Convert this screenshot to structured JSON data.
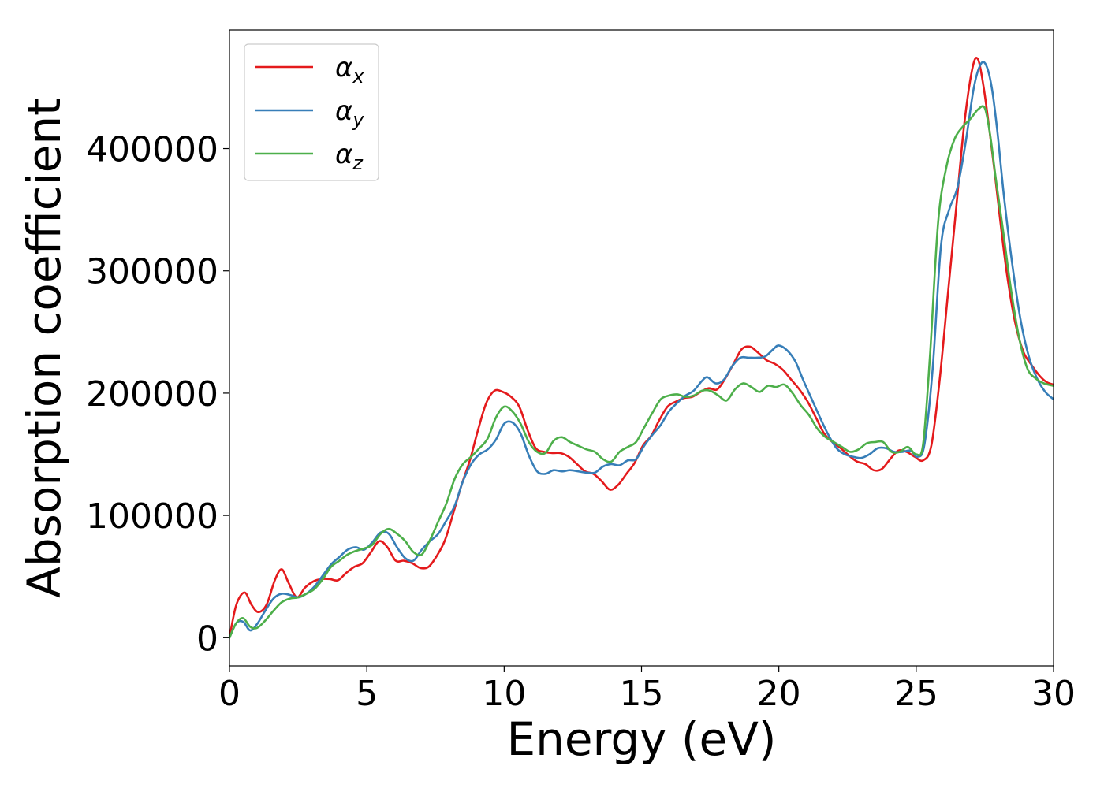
{
  "chart_data": {
    "type": "line",
    "title": "",
    "xlabel": "Energy (eV)",
    "ylabel": "Absorption coefficient",
    "xlim": [
      0,
      30
    ],
    "ylim": [
      -23000,
      497000
    ],
    "xticks": [
      0,
      5,
      10,
      15,
      20,
      25,
      30
    ],
    "yticks": [
      0,
      100000,
      200000,
      300000,
      400000
    ],
    "grid": false,
    "legend_position": "top-left",
    "series": [
      {
        "name": "x",
        "legend_symbol": "α",
        "color": "#e41a1c",
        "x": [
          0,
          0.25,
          0.55,
          0.8,
          1.05,
          1.35,
          1.65,
          1.9,
          2.15,
          2.45,
          2.75,
          3.05,
          3.35,
          3.65,
          3.95,
          4.25,
          4.55,
          4.85,
          5.15,
          5.45,
          5.75,
          6.05,
          6.35,
          6.65,
          6.95,
          7.25,
          7.55,
          7.85,
          8.15,
          8.45,
          8.75,
          9.05,
          9.35,
          9.65,
          9.95,
          10.25,
          10.55,
          10.85,
          11.15,
          11.45,
          11.75,
          12.05,
          12.35,
          12.65,
          12.95,
          13.25,
          13.55,
          13.85,
          14.15,
          14.45,
          14.75,
          15.05,
          15.35,
          15.65,
          15.95,
          16.25,
          16.55,
          16.85,
          17.15,
          17.45,
          17.75,
          18.05,
          18.35,
          18.65,
          18.95,
          19.25,
          19.55,
          19.85,
          20.15,
          20.45,
          20.75,
          21.05,
          21.35,
          21.65,
          21.95,
          22.25,
          22.55,
          22.85,
          23.15,
          23.45,
          23.75,
          24.05,
          24.35,
          24.65,
          24.95,
          25.25,
          25.55,
          25.85,
          26.15,
          26.45,
          26.75,
          27.05,
          27.25,
          27.45,
          27.65,
          27.85,
          28.05,
          28.3,
          28.6,
          28.9,
          29.2,
          29.5,
          29.75,
          30
        ],
        "values": [
          0,
          27000,
          37000,
          27000,
          21000,
          27000,
          47000,
          56000,
          45000,
          33000,
          41000,
          46000,
          48000,
          48000,
          47000,
          53000,
          58000,
          61000,
          70000,
          79000,
          74000,
          63000,
          63000,
          61000,
          57000,
          58000,
          67000,
          80000,
          102000,
          125000,
          145000,
          170000,
          192000,
          202000,
          201000,
          197000,
          189000,
          170000,
          155000,
          152000,
          151000,
          151000,
          148000,
          142000,
          136000,
          134000,
          128000,
          121000,
          125000,
          134000,
          143000,
          157000,
          165000,
          178000,
          189000,
          193000,
          196000,
          197000,
          201000,
          204000,
          203000,
          212000,
          224000,
          236000,
          238000,
          233000,
          227000,
          224000,
          219000,
          211000,
          203000,
          193000,
          180000,
          167000,
          160000,
          155000,
          149000,
          144000,
          142000,
          137000,
          138000,
          146000,
          153000,
          152000,
          148000,
          145000,
          157000,
          210000,
          280000,
          350000,
          420000,
          466000,
          473000,
          451000,
          418000,
          382000,
          343000,
          298000,
          258000,
          234000,
          223000,
          214000,
          209000,
          207000
        ]
      },
      {
        "name": "y",
        "legend_symbol": "α",
        "color": "#377eb8",
        "x": [
          0,
          0.25,
          0.5,
          0.75,
          1.0,
          1.3,
          1.6,
          1.9,
          2.2,
          2.5,
          2.8,
          3.1,
          3.4,
          3.7,
          4.0,
          4.3,
          4.6,
          4.9,
          5.2,
          5.5,
          5.8,
          6.1,
          6.4,
          6.7,
          7.0,
          7.3,
          7.6,
          7.9,
          8.2,
          8.5,
          8.8,
          9.1,
          9.4,
          9.7,
          10.0,
          10.3,
          10.6,
          10.9,
          11.2,
          11.5,
          11.8,
          12.1,
          12.4,
          12.7,
          13.0,
          13.3,
          13.6,
          13.9,
          14.2,
          14.5,
          14.8,
          15.1,
          15.4,
          15.7,
          16.0,
          16.3,
          16.6,
          16.9,
          17.2,
          17.4,
          17.7,
          18.0,
          18.3,
          18.6,
          18.9,
          19.2,
          19.5,
          19.8,
          20.0,
          20.3,
          20.6,
          20.9,
          21.2,
          21.5,
          21.8,
          22.1,
          22.4,
          22.7,
          23.0,
          23.3,
          23.6,
          23.9,
          24.2,
          24.5,
          24.8,
          25.05,
          25.3,
          25.6,
          25.9,
          26.2,
          26.5,
          26.8,
          27.1,
          27.35,
          27.55,
          27.75,
          27.95,
          28.2,
          28.5,
          28.8,
          29.1,
          29.4,
          29.7,
          30
        ],
        "values": [
          0,
          12000,
          13000,
          6000,
          11000,
          22000,
          32000,
          36000,
          35000,
          33000,
          36000,
          42000,
          51000,
          60000,
          66000,
          72000,
          74000,
          72000,
          78000,
          86000,
          85000,
          74000,
          65000,
          63000,
          72000,
          79000,
          85000,
          96000,
          108000,
          128000,
          142000,
          150000,
          154000,
          162000,
          175000,
          176000,
          167000,
          149000,
          136000,
          134000,
          137000,
          136000,
          137000,
          136000,
          135000,
          135000,
          140000,
          142000,
          141000,
          145000,
          146000,
          157000,
          166000,
          174000,
          185000,
          192000,
          198000,
          202000,
          210000,
          213000,
          208000,
          211000,
          222000,
          229000,
          229000,
          229000,
          230000,
          236000,
          239000,
          235000,
          226000,
          210000,
          195000,
          180000,
          166000,
          155000,
          150000,
          148000,
          147000,
          150000,
          155000,
          155000,
          152000,
          152000,
          153000,
          148000,
          158000,
          220000,
          320000,
          350000,
          368000,
          405000,
          450000,
          469000,
          468000,
          450000,
          415000,
          360000,
          305000,
          260000,
          230000,
          212000,
          201000,
          195000
        ]
      },
      {
        "name": "z",
        "legend_symbol": "α",
        "color": "#4daf4a",
        "x": [
          0,
          0.25,
          0.5,
          0.75,
          1.0,
          1.3,
          1.6,
          1.9,
          2.2,
          2.5,
          2.8,
          3.1,
          3.4,
          3.7,
          4.0,
          4.3,
          4.6,
          4.9,
          5.2,
          5.5,
          5.8,
          6.1,
          6.4,
          6.7,
          7.0,
          7.3,
          7.6,
          7.9,
          8.2,
          8.5,
          8.8,
          9.1,
          9.4,
          9.7,
          10.0,
          10.3,
          10.6,
          10.9,
          11.2,
          11.5,
          11.8,
          12.1,
          12.4,
          12.7,
          13.0,
          13.3,
          13.6,
          13.9,
          14.2,
          14.5,
          14.8,
          15.1,
          15.4,
          15.7,
          16.0,
          16.3,
          16.6,
          16.9,
          17.2,
          17.5,
          17.8,
          18.1,
          18.4,
          18.7,
          19.0,
          19.3,
          19.6,
          19.9,
          20.2,
          20.5,
          20.8,
          21.1,
          21.4,
          21.7,
          22.0,
          22.3,
          22.6,
          22.9,
          23.2,
          23.5,
          23.8,
          24.1,
          24.4,
          24.7,
          25.0,
          25.25,
          25.5,
          25.8,
          26.1,
          26.4,
          26.7,
          27.0,
          27.25,
          27.5,
          27.7,
          27.9,
          28.15,
          28.45,
          28.75,
          29.05,
          29.35,
          29.65,
          30
        ],
        "values": [
          0,
          12000,
          16000,
          9000,
          8000,
          14000,
          22000,
          29000,
          32000,
          33000,
          36000,
          40000,
          48000,
          58000,
          63000,
          68000,
          71000,
          73000,
          76000,
          85000,
          89000,
          85000,
          79000,
          70000,
          68000,
          80000,
          95000,
          110000,
          130000,
          142000,
          148000,
          155000,
          163000,
          180000,
          189000,
          185000,
          175000,
          160000,
          152000,
          151000,
          161000,
          164000,
          160000,
          157000,
          154000,
          152000,
          146000,
          144000,
          152000,
          156000,
          160000,
          172000,
          184000,
          195000,
          198000,
          199000,
          197000,
          198000,
          202000,
          202000,
          198000,
          194000,
          203000,
          208000,
          205000,
          201000,
          206000,
          205000,
          207000,
          200000,
          190000,
          182000,
          171000,
          164000,
          160000,
          156000,
          152000,
          154000,
          159000,
          160000,
          160000,
          152000,
          152000,
          156000,
          150000,
          158000,
          230000,
          340000,
          385000,
          408000,
          418000,
          425000,
          432000,
          433000,
          410000,
          375000,
          335000,
          285000,
          245000,
          220000,
          212000,
          208000,
          206000
        ]
      }
    ]
  }
}
